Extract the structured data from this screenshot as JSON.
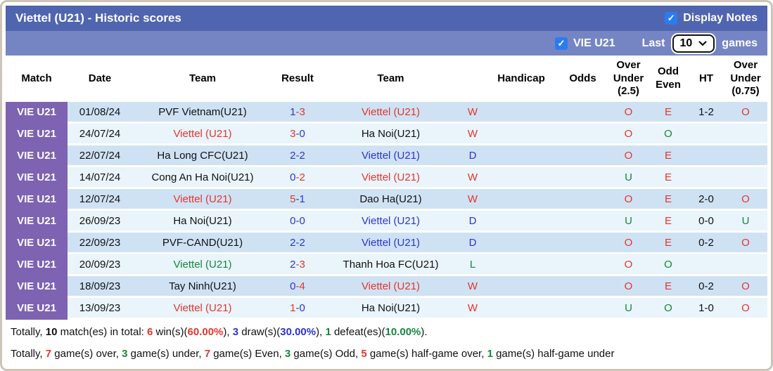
{
  "colors": {
    "red": "#e5352b",
    "blue": "#2b35cf",
    "green": "#17863c",
    "black": "#111111",
    "purple": "#7d63b2",
    "title_bar": "#5065b0",
    "filter_bar": "#7585c3",
    "row_odd": "#cfe2f4",
    "row_even": "#e9f4fb",
    "checkbox": "#2b7cf0"
  },
  "titlebar": {
    "title": "Viettel (U21) - Historic scores",
    "display_notes_label": "Display Notes",
    "display_notes_checked": true,
    "check_glyph": "✓"
  },
  "filterbar": {
    "team_label": "VIE U21",
    "team_checked": true,
    "last_label": "Last",
    "games_count": "10",
    "games_label": "games",
    "check_glyph": "✓"
  },
  "table": {
    "headers": [
      "Match",
      "Date",
      "Team",
      "Result",
      "Team",
      "",
      "Handicap",
      "Odds",
      "Over Under (2.5)",
      "Odd Even",
      "HT",
      "Over Under (0.75)"
    ],
    "rows": [
      {
        "match": "VIE U21",
        "date": "01/08/24",
        "home": {
          "name": "PVF Vietnam(U21)",
          "color": "black"
        },
        "score": {
          "home": "1",
          "home_color": "blue",
          "away": "3",
          "away_color": "red"
        },
        "away": {
          "name": "Viettel (U21)",
          "color": "red"
        },
        "outcome": {
          "text": "W",
          "color": "red"
        },
        "handicap": "",
        "odds": "",
        "ou25": {
          "text": "O",
          "color": "red"
        },
        "odd_even": {
          "text": "E",
          "color": "red"
        },
        "ht": "1-2",
        "ou075": {
          "text": "O",
          "color": "red"
        }
      },
      {
        "match": "VIE U21",
        "date": "24/07/24",
        "home": {
          "name": "Viettel (U21)",
          "color": "red"
        },
        "score": {
          "home": "3",
          "home_color": "red",
          "away": "0",
          "away_color": "blue"
        },
        "away": {
          "name": "Ha Noi(U21)",
          "color": "black"
        },
        "outcome": {
          "text": "W",
          "color": "red"
        },
        "handicap": "",
        "odds": "",
        "ou25": {
          "text": "O",
          "color": "red"
        },
        "odd_even": {
          "text": "O",
          "color": "green"
        },
        "ht": "",
        "ou075": {
          "text": "",
          "color": "black"
        }
      },
      {
        "match": "VIE U21",
        "date": "22/07/24",
        "home": {
          "name": "Ha Long CFC(U21)",
          "color": "black"
        },
        "score": {
          "home": "2",
          "home_color": "blue",
          "away": "2",
          "away_color": "blue"
        },
        "away": {
          "name": "Viettel (U21)",
          "color": "blue"
        },
        "outcome": {
          "text": "D",
          "color": "blue"
        },
        "handicap": "",
        "odds": "",
        "ou25": {
          "text": "O",
          "color": "red"
        },
        "odd_even": {
          "text": "E",
          "color": "red"
        },
        "ht": "",
        "ou075": {
          "text": "",
          "color": "black"
        }
      },
      {
        "match": "VIE U21",
        "date": "14/07/24",
        "home": {
          "name": "Cong An Ha Noi(U21)",
          "color": "black"
        },
        "score": {
          "home": "0",
          "home_color": "blue",
          "away": "2",
          "away_color": "red"
        },
        "away": {
          "name": "Viettel (U21)",
          "color": "red"
        },
        "outcome": {
          "text": "W",
          "color": "red"
        },
        "handicap": "",
        "odds": "",
        "ou25": {
          "text": "U",
          "color": "green"
        },
        "odd_even": {
          "text": "E",
          "color": "red"
        },
        "ht": "",
        "ou075": {
          "text": "",
          "color": "black"
        }
      },
      {
        "match": "VIE U21",
        "date": "12/07/24",
        "home": {
          "name": "Viettel (U21)",
          "color": "red"
        },
        "score": {
          "home": "5",
          "home_color": "red",
          "away": "1",
          "away_color": "blue"
        },
        "away": {
          "name": "Dao Ha(U21)",
          "color": "black"
        },
        "outcome": {
          "text": "W",
          "color": "red"
        },
        "handicap": "",
        "odds": "",
        "ou25": {
          "text": "O",
          "color": "red"
        },
        "odd_even": {
          "text": "E",
          "color": "red"
        },
        "ht": "2-0",
        "ou075": {
          "text": "O",
          "color": "red"
        }
      },
      {
        "match": "VIE U21",
        "date": "26/09/23",
        "home": {
          "name": "Ha Noi(U21)",
          "color": "black"
        },
        "score": {
          "home": "0",
          "home_color": "blue",
          "away": "0",
          "away_color": "blue"
        },
        "away": {
          "name": "Viettel (U21)",
          "color": "blue"
        },
        "outcome": {
          "text": "D",
          "color": "blue"
        },
        "handicap": "",
        "odds": "",
        "ou25": {
          "text": "U",
          "color": "green"
        },
        "odd_even": {
          "text": "E",
          "color": "red"
        },
        "ht": "0-0",
        "ou075": {
          "text": "U",
          "color": "green"
        }
      },
      {
        "match": "VIE U21",
        "date": "22/09/23",
        "home": {
          "name": "PVF-CAND(U21)",
          "color": "black"
        },
        "score": {
          "home": "2",
          "home_color": "blue",
          "away": "2",
          "away_color": "blue"
        },
        "away": {
          "name": "Viettel (U21)",
          "color": "blue"
        },
        "outcome": {
          "text": "D",
          "color": "blue"
        },
        "handicap": "",
        "odds": "",
        "ou25": {
          "text": "O",
          "color": "red"
        },
        "odd_even": {
          "text": "E",
          "color": "red"
        },
        "ht": "0-2",
        "ou075": {
          "text": "O",
          "color": "red"
        }
      },
      {
        "match": "VIE U21",
        "date": "20/09/23",
        "home": {
          "name": "Viettel (U21)",
          "color": "green"
        },
        "score": {
          "home": "2",
          "home_color": "blue",
          "away": "3",
          "away_color": "red"
        },
        "away": {
          "name": "Thanh Hoa FC(U21)",
          "color": "black"
        },
        "outcome": {
          "text": "L",
          "color": "green"
        },
        "handicap": "",
        "odds": "",
        "ou25": {
          "text": "O",
          "color": "red"
        },
        "odd_even": {
          "text": "O",
          "color": "green"
        },
        "ht": "",
        "ou075": {
          "text": "",
          "color": "black"
        }
      },
      {
        "match": "VIE U21",
        "date": "18/09/23",
        "home": {
          "name": "Tay Ninh(U21)",
          "color": "black"
        },
        "score": {
          "home": "0",
          "home_color": "blue",
          "away": "4",
          "away_color": "red"
        },
        "away": {
          "name": "Viettel (U21)",
          "color": "red"
        },
        "outcome": {
          "text": "W",
          "color": "red"
        },
        "handicap": "",
        "odds": "",
        "ou25": {
          "text": "O",
          "color": "red"
        },
        "odd_even": {
          "text": "E",
          "color": "red"
        },
        "ht": "0-2",
        "ou075": {
          "text": "O",
          "color": "red"
        }
      },
      {
        "match": "VIE U21",
        "date": "13/09/23",
        "home": {
          "name": "Viettel (U21)",
          "color": "red"
        },
        "score": {
          "home": "1",
          "home_color": "red",
          "away": "0",
          "away_color": "blue"
        },
        "away": {
          "name": "Ha Noi(U21)",
          "color": "black"
        },
        "outcome": {
          "text": "W",
          "color": "red"
        },
        "handicap": "",
        "odds": "",
        "ou25": {
          "text": "U",
          "color": "green"
        },
        "odd_even": {
          "text": "O",
          "color": "green"
        },
        "ht": "1-0",
        "ou075": {
          "text": "O",
          "color": "red"
        }
      }
    ]
  },
  "summary": {
    "line1": [
      {
        "text": "Totally, ",
        "color": "black",
        "bold": false
      },
      {
        "text": "10",
        "color": "black",
        "bold": true
      },
      {
        "text": " match(es) in total: ",
        "color": "black",
        "bold": false
      },
      {
        "text": "6",
        "color": "red",
        "bold": true
      },
      {
        "text": " win(s)(",
        "color": "black",
        "bold": false
      },
      {
        "text": "60.00%",
        "color": "red",
        "bold": true
      },
      {
        "text": "), ",
        "color": "black",
        "bold": false
      },
      {
        "text": "3",
        "color": "blue",
        "bold": true
      },
      {
        "text": " draw(s)(",
        "color": "black",
        "bold": false
      },
      {
        "text": "30.00%",
        "color": "blue",
        "bold": true
      },
      {
        "text": "), ",
        "color": "black",
        "bold": false
      },
      {
        "text": "1",
        "color": "green",
        "bold": true
      },
      {
        "text": " defeat(es)(",
        "color": "black",
        "bold": false
      },
      {
        "text": "10.00%",
        "color": "green",
        "bold": true
      },
      {
        "text": ").",
        "color": "black",
        "bold": false
      }
    ],
    "line2": [
      {
        "text": "Totally, ",
        "color": "black",
        "bold": false
      },
      {
        "text": "7",
        "color": "red",
        "bold": true
      },
      {
        "text": " game(s) over, ",
        "color": "black",
        "bold": false
      },
      {
        "text": "3",
        "color": "green",
        "bold": true
      },
      {
        "text": " game(s) under, ",
        "color": "black",
        "bold": false
      },
      {
        "text": "7",
        "color": "red",
        "bold": true
      },
      {
        "text": " game(s) Even, ",
        "color": "black",
        "bold": false
      },
      {
        "text": "3",
        "color": "green",
        "bold": true
      },
      {
        "text": " game(s) Odd, ",
        "color": "black",
        "bold": false
      },
      {
        "text": "5",
        "color": "red",
        "bold": true
      },
      {
        "text": " game(s) half-game over, ",
        "color": "black",
        "bold": false
      },
      {
        "text": "1",
        "color": "green",
        "bold": true
      },
      {
        "text": " game(s) half-game under",
        "color": "black",
        "bold": false
      }
    ]
  }
}
